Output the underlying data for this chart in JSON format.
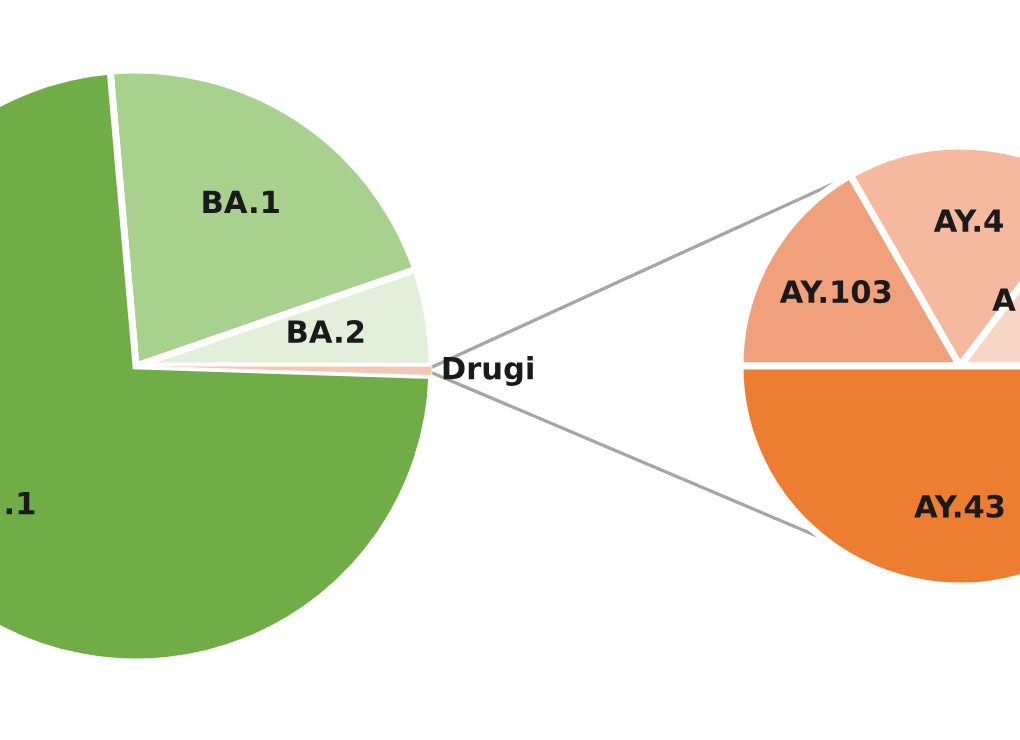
{
  "chart_data": [
    {
      "type": "pie",
      "categories": [
        "BA.1",
        "BA.2",
        "Drugi",
        ".1"
      ],
      "values": [
        21.1,
        5.3,
        0.5,
        73.1
      ],
      "colors": [
        "#a9d18e",
        "#e2efda",
        "#f4c7b5",
        "#70ad47"
      ]
    },
    {
      "type": "pie",
      "categories": [
        "AY.103",
        "AY.4",
        "A",
        "AY.43"
      ],
      "values": [
        16.7,
        18.6,
        14.7,
        50.0
      ],
      "colors": [
        "#f0a07a",
        "#f4b99e",
        "#f8d5c4",
        "#ed7d31"
      ]
    }
  ]
}
